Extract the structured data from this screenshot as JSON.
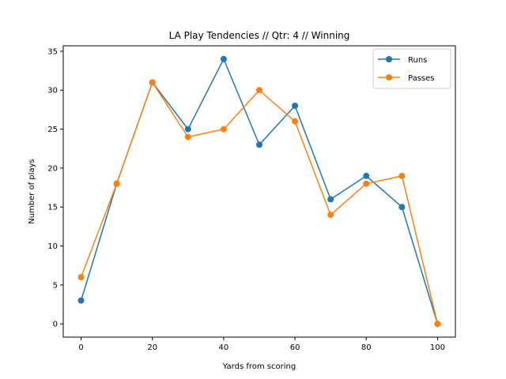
{
  "chart_data": {
    "type": "line",
    "title": "LA Play Tendencies // Qtr: 4 // Winning",
    "xlabel": "Yards from scoring",
    "ylabel": "Number of plays",
    "x": [
      0,
      10,
      20,
      30,
      40,
      50,
      60,
      70,
      80,
      90,
      100
    ],
    "xlim": [
      -5,
      105
    ],
    "ylim": [
      -1.7,
      35.7
    ],
    "xticks": [
      0,
      20,
      40,
      60,
      80,
      100
    ],
    "yticks": [
      0,
      5,
      10,
      15,
      20,
      25,
      30,
      35
    ],
    "grid": false,
    "legend_position": "top-right",
    "series": [
      {
        "name": "Runs",
        "color": "#1f77b4",
        "values": [
          3,
          18,
          31,
          25,
          34,
          23,
          28,
          16,
          19,
          15,
          0
        ]
      },
      {
        "name": "Passes",
        "color": "#ff7f0e",
        "values": [
          6,
          18,
          31,
          24,
          25,
          30,
          26,
          14,
          18,
          19,
          0
        ]
      }
    ]
  }
}
